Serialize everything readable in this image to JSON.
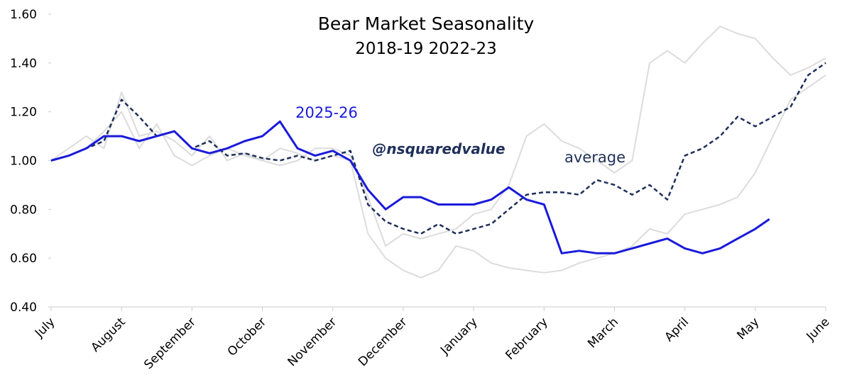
{
  "chart_data": {
    "type": "line",
    "title": "Bear Market Seasonality",
    "subtitle": "2018-19  2022-23",
    "watermark": "@nsquaredvalue",
    "xlim": [
      0,
      11
    ],
    "xticks": [
      {
        "value": 0,
        "label": "July"
      },
      {
        "value": 1,
        "label": "August"
      },
      {
        "value": 2,
        "label": "September"
      },
      {
        "value": 3,
        "label": "October"
      },
      {
        "value": 4,
        "label": "November"
      },
      {
        "value": 5,
        "label": "December"
      },
      {
        "value": 6,
        "label": "January"
      },
      {
        "value": 7,
        "label": "February"
      },
      {
        "value": 8,
        "label": "March"
      },
      {
        "value": 9,
        "label": "April"
      },
      {
        "value": 10,
        "label": "May"
      },
      {
        "value": 11,
        "label": "June"
      }
    ],
    "ylim": [
      0.4,
      1.6
    ],
    "yticks": [
      {
        "value": 0.4,
        "label": "0.40"
      },
      {
        "value": 0.6,
        "label": "0.60"
      },
      {
        "value": 0.8,
        "label": "0.80"
      },
      {
        "value": 1,
        "label": "1.00"
      },
      {
        "value": 1.2,
        "label": "1.20"
      },
      {
        "value": 1.4,
        "label": "1.40"
      },
      {
        "value": 1.6,
        "label": "1.60"
      }
    ],
    "series": [
      {
        "color": "#dcdcdc",
        "dashed": false,
        "x": [
          0,
          0.25,
          0.5,
          0.75,
          1,
          1.25,
          1.5,
          1.75,
          2,
          2.25,
          2.5,
          2.75,
          3,
          3.25,
          3.5,
          3.75,
          4,
          4.25,
          4.5,
          4.75,
          5,
          5.25,
          5.5,
          5.75,
          6,
          6.25,
          6.5,
          6.75,
          7,
          7.25,
          7.5,
          7.75,
          8,
          8.25,
          8.5,
          8.75,
          9,
          9.25,
          9.5,
          9.75,
          10,
          10.25,
          10.5,
          10.75,
          11
        ],
        "values": [
          1.0,
          1.05,
          1.1,
          1.05,
          1.28,
          1.1,
          1.12,
          1.08,
          1.02,
          1.1,
          1.0,
          1.03,
          1.0,
          0.98,
          1.0,
          1.05,
          1.05,
          1.02,
          0.85,
          0.65,
          0.7,
          0.68,
          0.7,
          0.72,
          0.78,
          0.8,
          0.9,
          1.1,
          1.15,
          1.08,
          1.05,
          1.0,
          0.95,
          1.0,
          1.4,
          1.45,
          1.4,
          1.48,
          1.55,
          1.52,
          1.5,
          1.42,
          1.35,
          1.38,
          1.42
        ]
      },
      {
        "color": "#dcdcdc",
        "dashed": false,
        "x": [
          0,
          0.25,
          0.5,
          0.75,
          1,
          1.25,
          1.5,
          1.75,
          2,
          2.25,
          2.5,
          2.75,
          3,
          3.25,
          3.5,
          3.75,
          4,
          4.25,
          4.5,
          4.75,
          5,
          5.25,
          5.5,
          5.75,
          6,
          6.25,
          6.5,
          6.75,
          7,
          7.25,
          7.5,
          7.75,
          8,
          8.25,
          8.5,
          8.75,
          9,
          9.25,
          9.5,
          9.75,
          10,
          10.25,
          10.5,
          10.75,
          11
        ],
        "values": [
          1.0,
          1.02,
          1.05,
          1.12,
          1.2,
          1.05,
          1.15,
          1.02,
          0.98,
          1.02,
          1.05,
          1.02,
          1.0,
          1.05,
          1.03,
          1.0,
          1.02,
          1.0,
          0.7,
          0.6,
          0.55,
          0.52,
          0.55,
          0.65,
          0.63,
          0.58,
          0.56,
          0.55,
          0.54,
          0.55,
          0.58,
          0.6,
          0.62,
          0.65,
          0.72,
          0.7,
          0.78,
          0.8,
          0.82,
          0.85,
          0.95,
          1.1,
          1.25,
          1.3,
          1.35
        ]
      },
      {
        "name": "average",
        "color": "#1f2f5a",
        "dashed": true,
        "x": [
          0,
          0.25,
          0.5,
          0.75,
          1,
          1.25,
          1.5,
          1.75,
          2,
          2.25,
          2.5,
          2.75,
          3,
          3.25,
          3.5,
          3.75,
          4,
          4.25,
          4.5,
          4.75,
          5,
          5.25,
          5.5,
          5.75,
          6,
          6.25,
          6.5,
          6.75,
          7,
          7.25,
          7.5,
          7.75,
          8,
          8.25,
          8.5,
          8.75,
          9,
          9.25,
          9.5,
          9.75,
          10,
          10.25,
          10.5,
          10.75,
          11
        ],
        "values": [
          1.0,
          1.02,
          1.05,
          1.08,
          1.25,
          1.18,
          1.1,
          1.12,
          1.05,
          1.08,
          1.02,
          1.03,
          1.01,
          1.0,
          1.02,
          1.0,
          1.02,
          1.04,
          0.82,
          0.75,
          0.72,
          0.7,
          0.74,
          0.7,
          0.72,
          0.74,
          0.8,
          0.86,
          0.87,
          0.87,
          0.86,
          0.92,
          0.9,
          0.86,
          0.9,
          0.84,
          1.02,
          1.05,
          1.1,
          1.18,
          1.14,
          1.18,
          1.22,
          1.35,
          1.4
        ]
      },
      {
        "name": "2025-26",
        "color": "#1a1adb",
        "dashed": false,
        "x": [
          0,
          0.25,
          0.5,
          0.75,
          1,
          1.25,
          1.5,
          1.75,
          2,
          2.25,
          2.5,
          2.75,
          3,
          3.25,
          3.5,
          3.75,
          4,
          4.25,
          4.5,
          4.75,
          5,
          5.25,
          5.5,
          5.75,
          6,
          6.25,
          6.5,
          6.75,
          7,
          7.25,
          7.5,
          7.75,
          8,
          8.25,
          8.5,
          8.75,
          9,
          9.25,
          9.5,
          9.75,
          10,
          10.2
        ],
        "values": [
          1.0,
          1.02,
          1.05,
          1.1,
          1.1,
          1.08,
          1.1,
          1.12,
          1.05,
          1.03,
          1.05,
          1.08,
          1.1,
          1.16,
          1.05,
          1.02,
          1.04,
          1.0,
          0.88,
          0.8,
          0.85,
          0.85,
          0.82,
          0.82,
          0.82,
          0.84,
          0.89,
          0.84,
          0.82,
          0.62,
          0.63,
          0.62,
          0.62,
          0.64,
          0.66,
          0.68,
          0.64,
          0.62,
          0.64,
          0.68,
          0.72,
          0.76
        ]
      }
    ]
  }
}
